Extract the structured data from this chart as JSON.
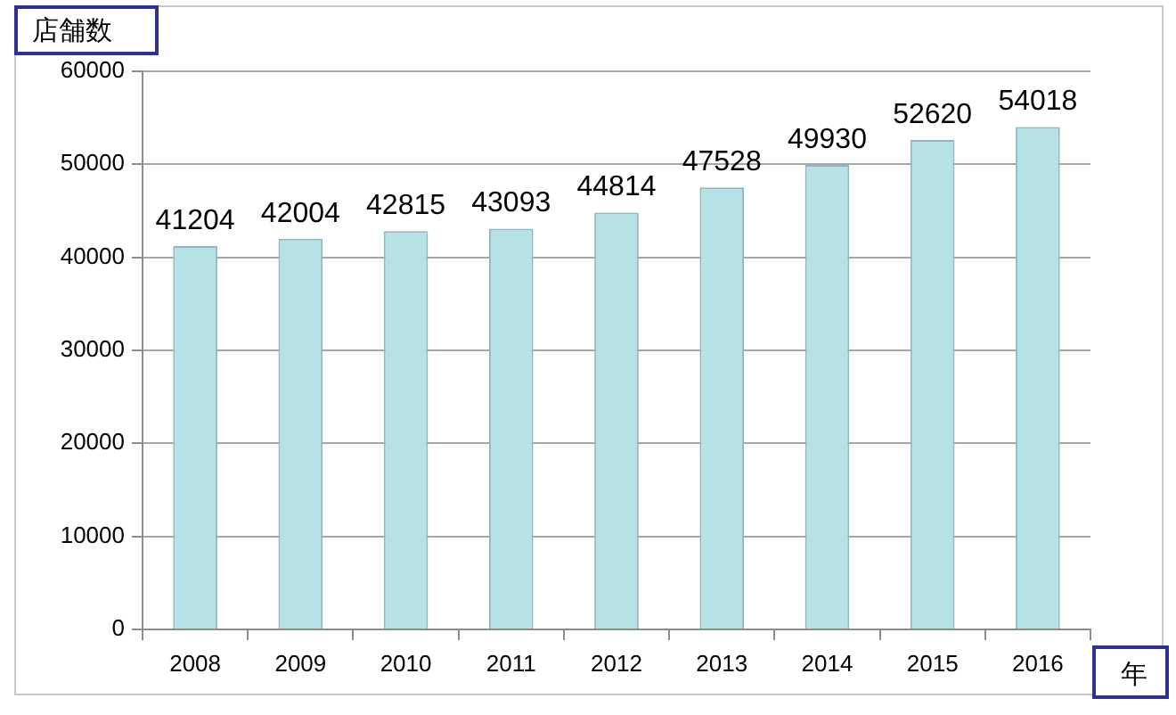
{
  "chart_data": {
    "type": "bar",
    "xlabel": "年",
    "ylabel": "店舗数",
    "categories": [
      "2008",
      "2009",
      "2010",
      "2011",
      "2012",
      "2013",
      "2014",
      "2015",
      "2016"
    ],
    "values": [
      41204,
      42004,
      42815,
      43093,
      44814,
      47528,
      49930,
      52620,
      54018
    ],
    "color": "#b6e2e6",
    "ylim": [
      0,
      60000
    ],
    "yticks": [
      0,
      10000,
      20000,
      30000,
      40000,
      50000,
      60000
    ],
    "grid": "y",
    "data_labels": true
  }
}
